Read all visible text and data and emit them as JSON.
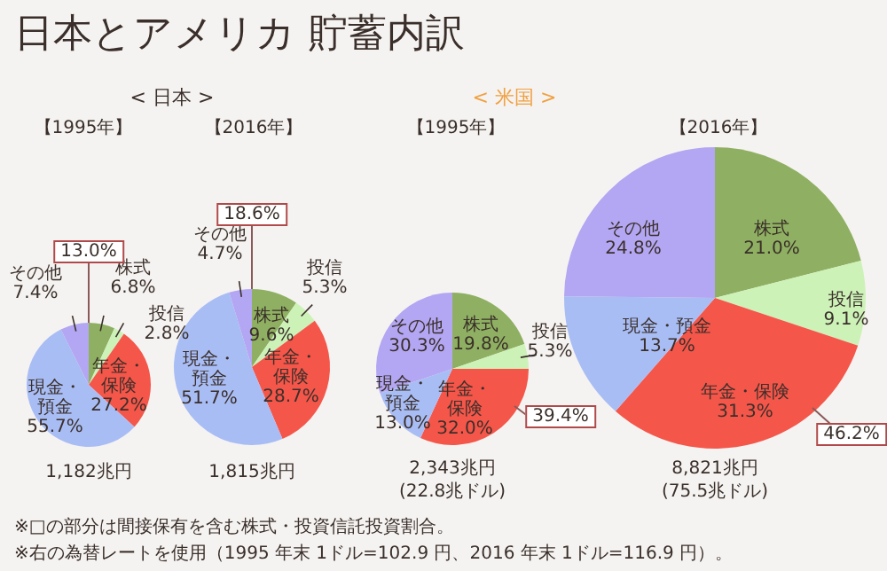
{
  "chart_data": [
    {
      "type": "other",
      "title": "日本とアメリカ 貯蓄内訳",
      "annotations": [
        "※□の部分は間接保有を含む株式・投資信託投資割合。",
        "※右の為替レートを使用（1995 年末 1ドル=102.9 円、2016 年末 1ドル=116.9 円）。"
      ]
    },
    {
      "type": "pie",
      "subtitle": "< 日本 >",
      "title": "【1995年】",
      "categories": [
        "株式",
        "投信",
        "年金・保険",
        "現金・預金",
        "その他"
      ],
      "values": [
        6.8,
        2.8,
        27.2,
        55.7,
        7.4
      ],
      "value_labels": [
        "6.8%",
        "2.8%",
        "27.2%",
        "55.7%",
        "7.4%"
      ],
      "colors": [
        "#8fb062",
        "#cdf2b8",
        "#f5564a",
        "#a9bdf5",
        "#b3a6f2"
      ],
      "annotations": [
        "13.0%",
        "1,182兆円"
      ]
    },
    {
      "type": "pie",
      "title": "【2016年】",
      "categories": [
        "株式",
        "投信",
        "年金・保険",
        "現金・預金",
        "その他"
      ],
      "values": [
        9.6,
        5.3,
        28.7,
        51.7,
        4.7
      ],
      "value_labels": [
        "9.6%",
        "5.3%",
        "28.7%",
        "51.7%",
        "4.7%"
      ],
      "colors": [
        "#8fb062",
        "#cdf2b8",
        "#f5564a",
        "#a9bdf5",
        "#b3a6f2"
      ],
      "annotations": [
        "18.6%",
        "1,815兆円"
      ]
    },
    {
      "type": "pie",
      "subtitle": "< 米国 >",
      "title": "【1995年】",
      "categories": [
        "株式",
        "投信",
        "年金・保険",
        "現金・預金",
        "その他"
      ],
      "values": [
        19.8,
        5.3,
        32.0,
        13.0,
        30.3
      ],
      "value_labels": [
        "19.8%",
        "5.3%",
        "32.0%",
        "13.0%",
        "30.3%"
      ],
      "colors": [
        "#8fb062",
        "#cdf2b8",
        "#f5564a",
        "#a9bdf5",
        "#b3a6f2"
      ],
      "annotations": [
        "39.4%",
        "2,343兆円",
        "(22.8兆ドル)"
      ]
    },
    {
      "type": "pie",
      "title": "【2016年】",
      "categories": [
        "株式",
        "投信",
        "年金・保険",
        "現金・預金",
        "その他"
      ],
      "values": [
        21.0,
        9.1,
        31.3,
        13.7,
        24.8
      ],
      "value_labels": [
        "21.0%",
        "9.1%",
        "31.3%",
        "13.7%",
        "24.8%"
      ],
      "colors": [
        "#8fb062",
        "#cdf2b8",
        "#f5564a",
        "#a9bdf5",
        "#b3a6f2"
      ],
      "annotations": [
        "46.2%",
        "8,821兆円",
        "(75.5兆ドル)"
      ]
    }
  ]
}
